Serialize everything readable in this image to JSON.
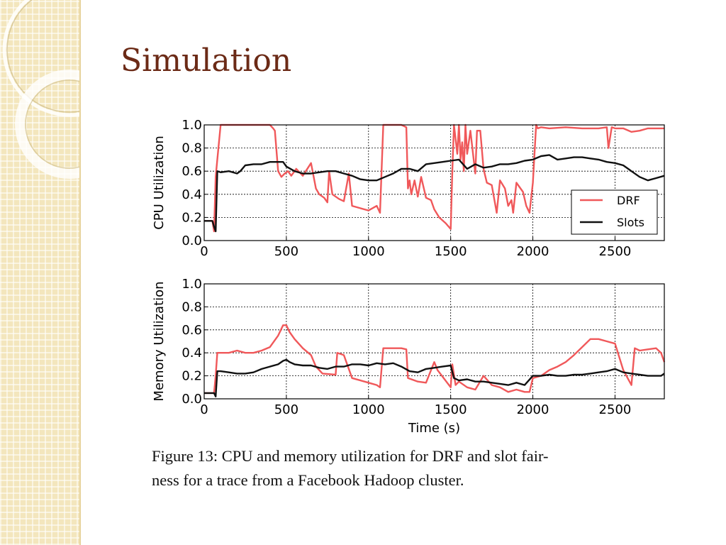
{
  "slide": {
    "title": "Simulation"
  },
  "caption": {
    "line1": "Figure 13: CPU and memory utilization for DRF and slot fair-",
    "line2": "ness for a trace from a Facebook Hadoop cluster."
  },
  "colors": {
    "drf": "#f0585a",
    "slots": "#111111",
    "title": "#6b2a16",
    "band": "#f3e6bd"
  },
  "chart_data": [
    {
      "type": "line",
      "ylabel": "CPU Utilization",
      "xlabel": "",
      "xlim": [
        0,
        2800
      ],
      "ylim": [
        0,
        1.0
      ],
      "xticks": [
        0,
        500,
        1000,
        1500,
        2000,
        2500
      ],
      "yticks": [
        0.0,
        0.2,
        0.4,
        0.6,
        0.8,
        1.0
      ],
      "xtick_labels": [
        "0",
        "500",
        "1000",
        "1500",
        "2000",
        "2500"
      ],
      "ytick_labels": [
        "0.0",
        "0.2",
        "0.4",
        "0.6",
        "0.8",
        "1.0"
      ],
      "grid": true,
      "legend": "lower-right",
      "series": [
        {
          "name": "DRF",
          "color": "#f0585a",
          "x": [
            0,
            50,
            60,
            70,
            80,
            100,
            400,
            420,
            430,
            450,
            470,
            490,
            510,
            530,
            560,
            600,
            650,
            680,
            700,
            730,
            750,
            760,
            780,
            820,
            850,
            880,
            900,
            950,
            1000,
            1050,
            1070,
            1090,
            1100,
            1200,
            1230,
            1240,
            1250,
            1260,
            1280,
            1300,
            1320,
            1350,
            1380,
            1400,
            1430,
            1470,
            1500,
            1510,
            1520,
            1540,
            1550,
            1560,
            1570,
            1580,
            1590,
            1600,
            1620,
            1640,
            1650,
            1660,
            1680,
            1700,
            1720,
            1750,
            1780,
            1800,
            1830,
            1850,
            1870,
            1880,
            1900,
            1940,
            1960,
            1980,
            2000,
            2020,
            2030,
            2050,
            2100,
            2200,
            2300,
            2400,
            2450,
            2460,
            2480,
            2500,
            2550,
            2600,
            2650,
            2700,
            2800
          ],
          "y": [
            0.17,
            0.17,
            0.08,
            0.55,
            0.7,
            1.0,
            1.0,
            0.97,
            0.95,
            0.6,
            0.55,
            0.58,
            0.6,
            0.56,
            0.62,
            0.56,
            0.67,
            0.45,
            0.4,
            0.37,
            0.33,
            0.6,
            0.4,
            0.36,
            0.34,
            0.58,
            0.3,
            0.28,
            0.26,
            0.3,
            0.24,
            1.0,
            1.0,
            1.0,
            0.98,
            0.45,
            0.52,
            0.4,
            0.52,
            0.38,
            0.55,
            0.37,
            0.35,
            0.27,
            0.2,
            0.15,
            0.1,
            0.6,
            1.0,
            0.75,
            1.0,
            0.7,
            0.85,
            0.6,
            1.0,
            0.75,
            0.95,
            0.7,
            0.58,
            0.95,
            0.95,
            0.62,
            0.5,
            0.48,
            0.24,
            0.52,
            0.45,
            0.3,
            0.35,
            0.24,
            0.5,
            0.42,
            0.3,
            0.24,
            0.5,
            1.0,
            0.97,
            0.98,
            0.97,
            0.98,
            0.97,
            0.97,
            0.98,
            0.8,
            0.98,
            0.97,
            0.97,
            0.94,
            0.95,
            0.97,
            0.97
          ]
        },
        {
          "name": "Slots",
          "color": "#111111",
          "x": [
            0,
            50,
            60,
            70,
            80,
            100,
            150,
            200,
            220,
            250,
            300,
            350,
            400,
            450,
            480,
            500,
            550,
            600,
            650,
            700,
            750,
            800,
            850,
            900,
            950,
            1000,
            1050,
            1100,
            1150,
            1200,
            1250,
            1300,
            1350,
            1400,
            1450,
            1500,
            1550,
            1600,
            1650,
            1700,
            1750,
            1800,
            1850,
            1900,
            1950,
            2000,
            2050,
            2100,
            2150,
            2200,
            2250,
            2300,
            2350,
            2400,
            2450,
            2500,
            2550,
            2600,
            2650,
            2700,
            2750,
            2800
          ],
          "y": [
            0.17,
            0.17,
            0.12,
            0.08,
            0.6,
            0.59,
            0.6,
            0.58,
            0.6,
            0.65,
            0.66,
            0.66,
            0.68,
            0.68,
            0.68,
            0.64,
            0.6,
            0.58,
            0.58,
            0.59,
            0.6,
            0.6,
            0.58,
            0.56,
            0.53,
            0.52,
            0.52,
            0.55,
            0.58,
            0.62,
            0.62,
            0.6,
            0.66,
            0.67,
            0.68,
            0.69,
            0.7,
            0.62,
            0.66,
            0.63,
            0.64,
            0.66,
            0.66,
            0.67,
            0.69,
            0.7,
            0.73,
            0.74,
            0.7,
            0.71,
            0.72,
            0.72,
            0.71,
            0.7,
            0.68,
            0.67,
            0.65,
            0.6,
            0.55,
            0.52,
            0.54,
            0.56
          ]
        }
      ]
    },
    {
      "type": "line",
      "ylabel": "Memory Utilization",
      "xlabel": "Time (s)",
      "xlim": [
        0,
        2800
      ],
      "ylim": [
        0,
        1.0
      ],
      "xticks": [
        0,
        500,
        1000,
        1500,
        2000,
        2500
      ],
      "yticks": [
        0.0,
        0.2,
        0.4,
        0.6,
        0.8,
        1.0
      ],
      "xtick_labels": [
        "0",
        "500",
        "1000",
        "1500",
        "2000",
        "2500"
      ],
      "ytick_labels": [
        "0.0",
        "0.2",
        "0.4",
        "0.6",
        "0.8",
        "1.0"
      ],
      "grid": true,
      "series": [
        {
          "name": "DRF",
          "color": "#f0585a",
          "x": [
            0,
            60,
            70,
            80,
            100,
            150,
            200,
            250,
            300,
            350,
            400,
            450,
            480,
            500,
            520,
            550,
            600,
            650,
            680,
            700,
            720,
            800,
            810,
            850,
            900,
            1000,
            1050,
            1070,
            1090,
            1100,
            1200,
            1230,
            1240,
            1300,
            1350,
            1400,
            1420,
            1500,
            1510,
            1530,
            1550,
            1600,
            1650,
            1700,
            1750,
            1800,
            1850,
            1900,
            1950,
            1980,
            2000,
            2050,
            2100,
            2150,
            2200,
            2250,
            2300,
            2350,
            2400,
            2450,
            2500,
            2550,
            2600,
            2620,
            2650,
            2700,
            2750,
            2780,
            2800
          ],
          "y": [
            0.05,
            0.05,
            0.2,
            0.4,
            0.4,
            0.4,
            0.42,
            0.4,
            0.4,
            0.42,
            0.45,
            0.55,
            0.64,
            0.64,
            0.58,
            0.52,
            0.44,
            0.38,
            0.28,
            0.25,
            0.22,
            0.21,
            0.4,
            0.38,
            0.18,
            0.14,
            0.12,
            0.1,
            0.44,
            0.44,
            0.44,
            0.43,
            0.18,
            0.15,
            0.14,
            0.32,
            0.25,
            0.1,
            0.3,
            0.12,
            0.15,
            0.1,
            0.08,
            0.2,
            0.12,
            0.1,
            0.06,
            0.08,
            0.06,
            0.06,
            0.18,
            0.2,
            0.25,
            0.28,
            0.32,
            0.38,
            0.45,
            0.52,
            0.52,
            0.5,
            0.48,
            0.25,
            0.12,
            0.44,
            0.42,
            0.43,
            0.44,
            0.4,
            0.32
          ]
        },
        {
          "name": "Slots",
          "color": "#111111",
          "x": [
            0,
            60,
            70,
            80,
            100,
            150,
            200,
            250,
            300,
            350,
            400,
            450,
            480,
            500,
            520,
            550,
            600,
            650,
            700,
            750,
            800,
            850,
            900,
            950,
            1000,
            1050,
            1100,
            1150,
            1200,
            1250,
            1300,
            1350,
            1400,
            1450,
            1500,
            1520,
            1550,
            1600,
            1650,
            1700,
            1750,
            1800,
            1850,
            1900,
            1950,
            2000,
            2050,
            2100,
            2150,
            2200,
            2250,
            2300,
            2350,
            2400,
            2450,
            2500,
            2550,
            2600,
            2650,
            2700,
            2750,
            2780,
            2800
          ],
          "y": [
            0.05,
            0.05,
            0.02,
            0.24,
            0.24,
            0.23,
            0.22,
            0.22,
            0.23,
            0.26,
            0.28,
            0.3,
            0.33,
            0.34,
            0.32,
            0.3,
            0.29,
            0.29,
            0.27,
            0.26,
            0.28,
            0.28,
            0.3,
            0.3,
            0.29,
            0.31,
            0.3,
            0.31,
            0.28,
            0.24,
            0.23,
            0.26,
            0.27,
            0.28,
            0.29,
            0.18,
            0.16,
            0.17,
            0.15,
            0.15,
            0.14,
            0.13,
            0.12,
            0.14,
            0.12,
            0.2,
            0.2,
            0.21,
            0.2,
            0.2,
            0.21,
            0.21,
            0.22,
            0.23,
            0.24,
            0.26,
            0.23,
            0.22,
            0.21,
            0.2,
            0.2,
            0.2,
            0.22
          ]
        }
      ]
    }
  ]
}
